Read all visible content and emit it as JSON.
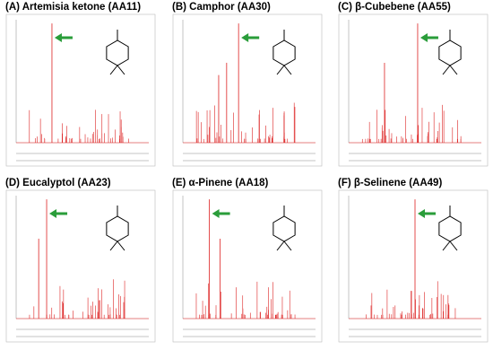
{
  "panels": [
    {
      "title": "(A) Artemisia ketone (AA11)"
    },
    {
      "title": "(B) Camphor (AA30)"
    },
    {
      "title": "(C) β-Cubebene (AA55)"
    },
    {
      "title": "(D) Eucalyptol (AA23)"
    },
    {
      "title": "(E) α-Pinene (AA18)"
    },
    {
      "title": "(F) β-Selinene (AA49)"
    }
  ]
}
